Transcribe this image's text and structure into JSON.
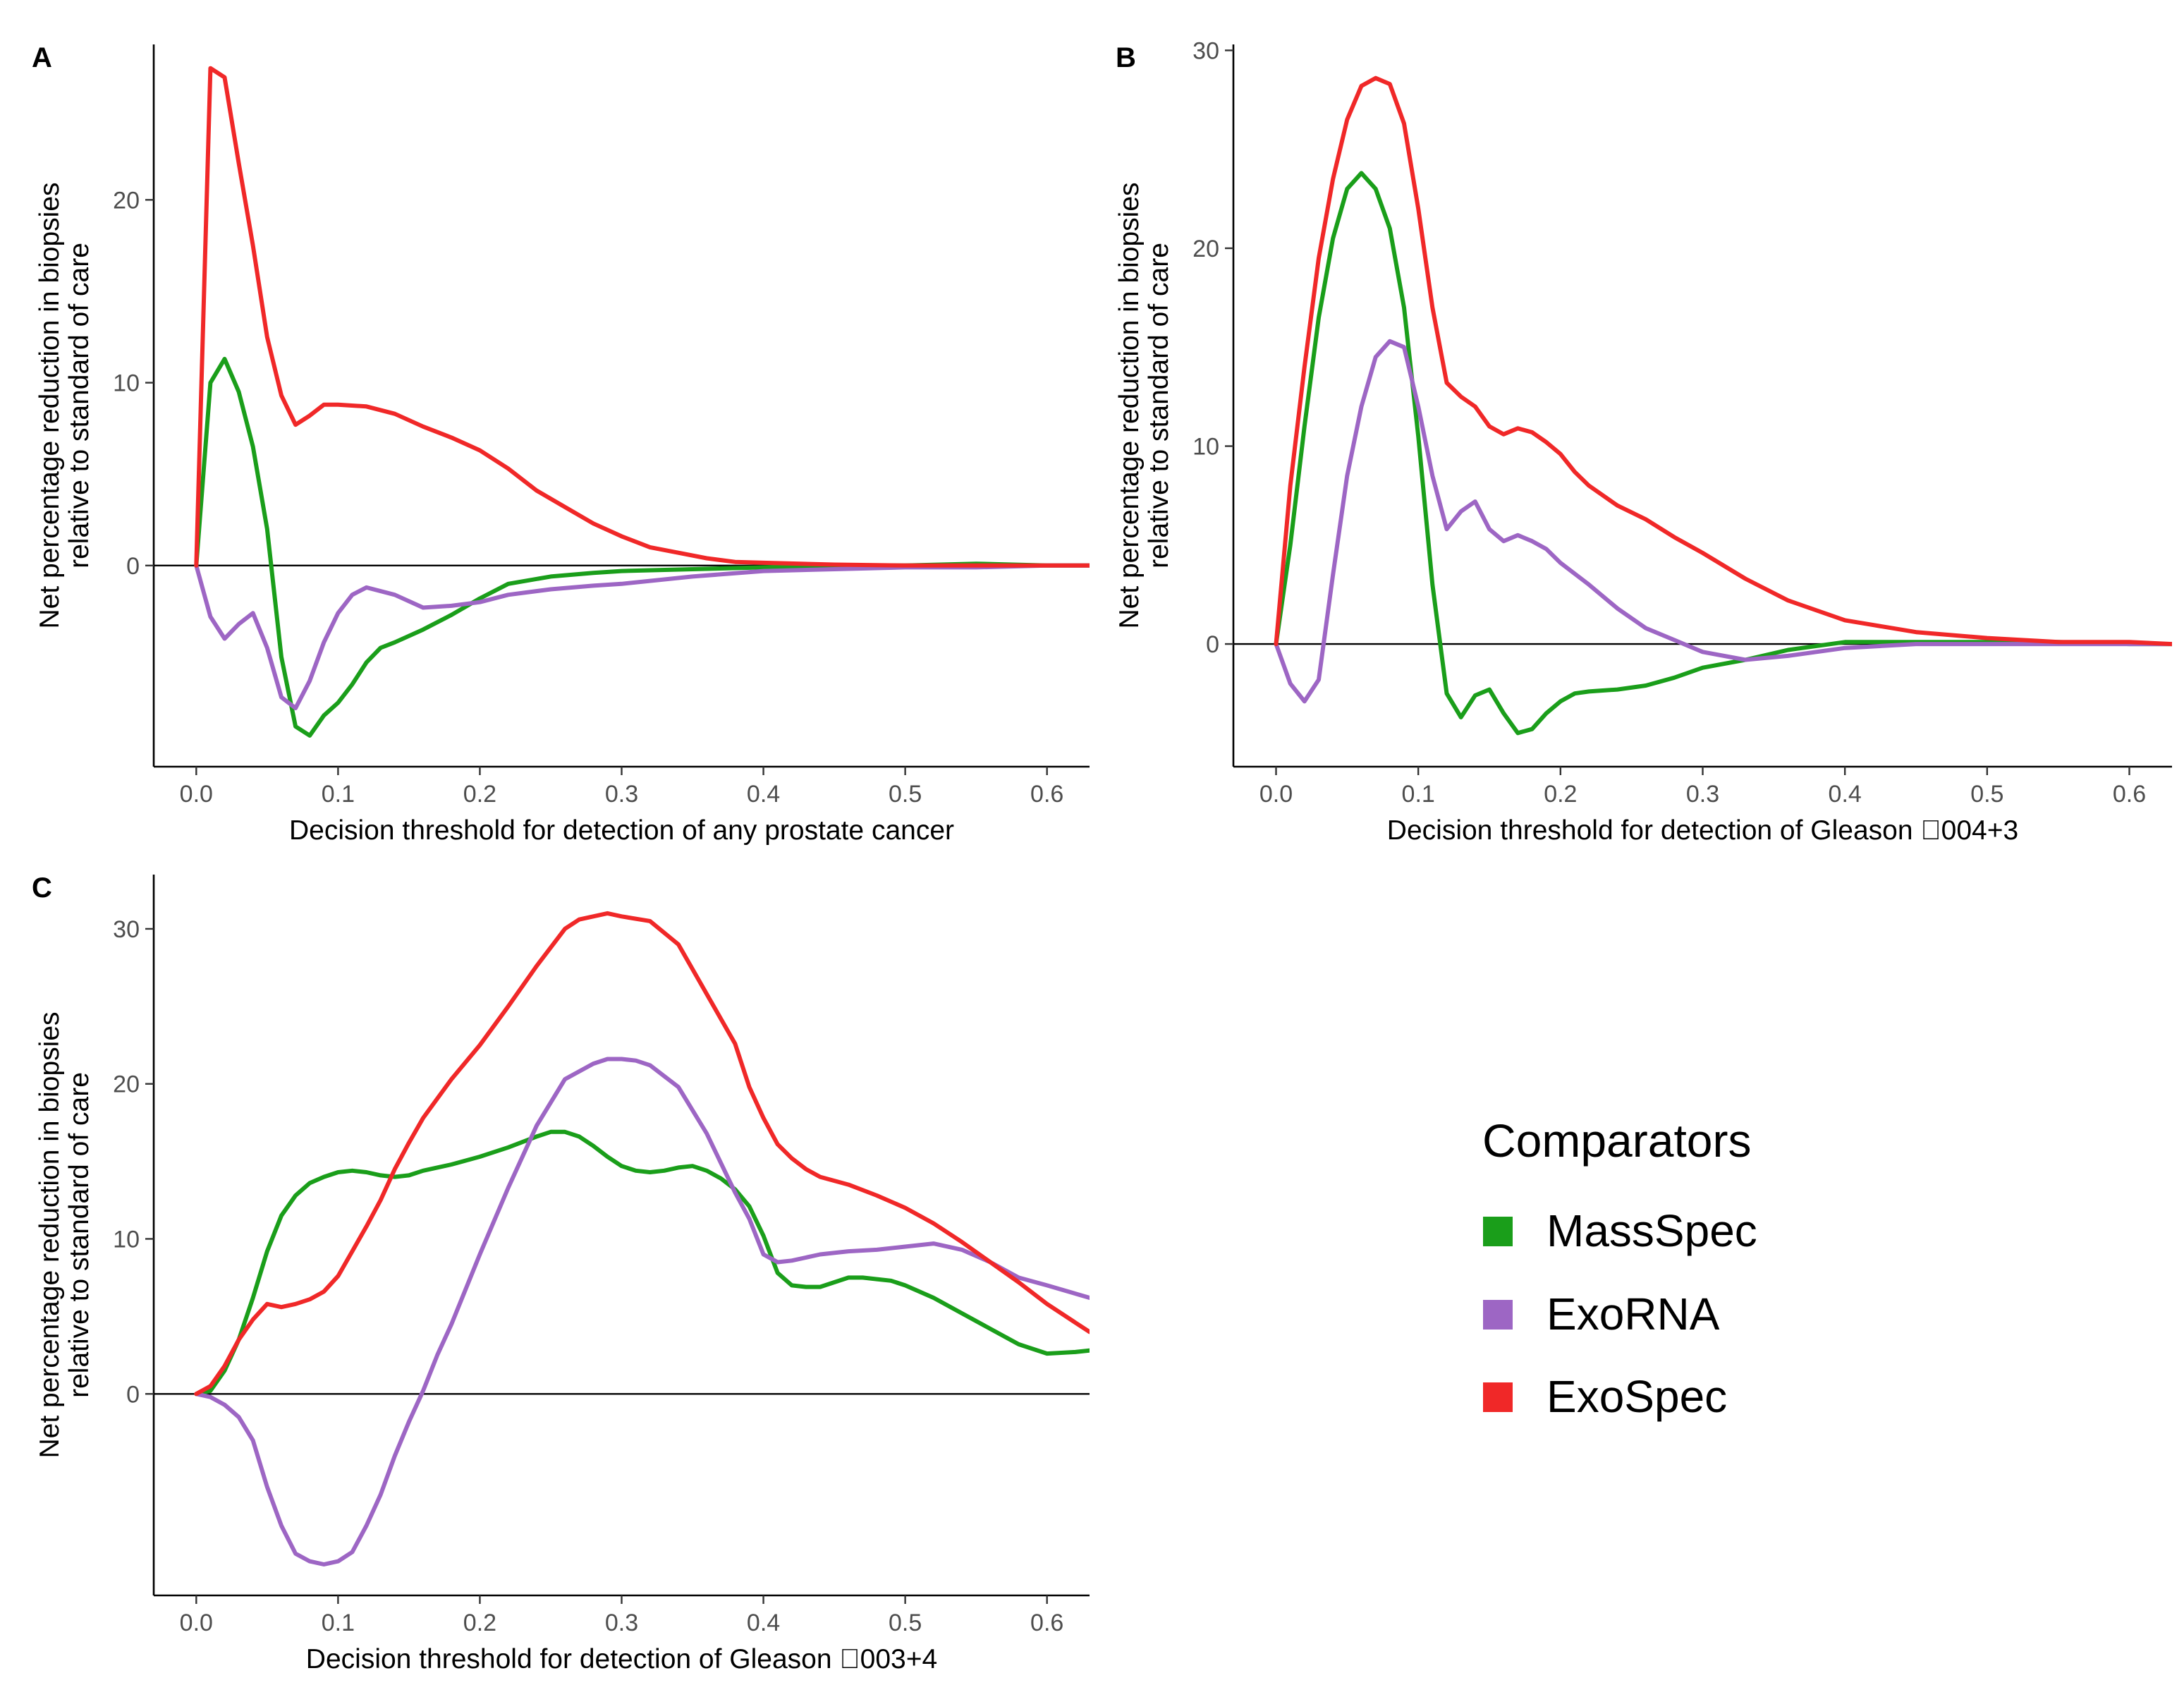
{
  "chart_data": [
    {
      "type": "line",
      "panel": "A",
      "title": "",
      "xlabel": "Decision threshold for detection of any prostate cancer",
      "ylabel_lines": [
        "Net percentage reduction in biopsies",
        "relative to standard of care"
      ],
      "xlim": [
        -0.03,
        0.63
      ],
      "ylim": [
        -11,
        28.5
      ],
      "xticks": [
        0.0,
        0.1,
        0.2,
        0.3,
        0.4,
        0.5,
        0.6
      ],
      "xtick_labels": [
        "0.0",
        "0.1",
        "0.2",
        "0.3",
        "0.4",
        "0.5",
        "0.6"
      ],
      "yticks": [
        0,
        10,
        20
      ],
      "ytick_labels": [
        "0",
        "10",
        "20"
      ],
      "reference_line": 0,
      "series": [
        {
          "name": "MassSpec",
          "color": "#1a9e1a",
          "x": [
            0,
            0.01,
            0.02,
            0.03,
            0.04,
            0.05,
            0.06,
            0.07,
            0.08,
            0.09,
            0.1,
            0.11,
            0.12,
            0.13,
            0.14,
            0.16,
            0.18,
            0.2,
            0.22,
            0.25,
            0.28,
            0.3,
            0.35,
            0.4,
            0.45,
            0.5,
            0.55,
            0.6,
            0.63
          ],
          "y": [
            0,
            10.0,
            11.3,
            9.5,
            6.5,
            2.0,
            -5.0,
            -8.8,
            -9.3,
            -8.2,
            -7.5,
            -6.5,
            -5.3,
            -4.5,
            -4.2,
            -3.5,
            -2.7,
            -1.8,
            -1.0,
            -0.6,
            -0.4,
            -0.3,
            -0.2,
            -0.1,
            0,
            0,
            0.1,
            0,
            0
          ]
        },
        {
          "name": "ExoRNA",
          "color": "#9d66c4",
          "x": [
            0,
            0.01,
            0.02,
            0.03,
            0.04,
            0.05,
            0.06,
            0.07,
            0.08,
            0.09,
            0.1,
            0.11,
            0.12,
            0.14,
            0.16,
            0.18,
            0.2,
            0.22,
            0.25,
            0.28,
            0.3,
            0.35,
            0.4,
            0.45,
            0.5,
            0.55,
            0.6,
            0.63
          ],
          "y": [
            0,
            -2.8,
            -4.0,
            -3.2,
            -2.6,
            -4.5,
            -7.2,
            -7.8,
            -6.3,
            -4.2,
            -2.6,
            -1.6,
            -1.2,
            -1.6,
            -2.3,
            -2.2,
            -2.0,
            -1.6,
            -1.3,
            -1.1,
            -1.0,
            -0.6,
            -0.3,
            -0.2,
            -0.1,
            -0.1,
            0,
            0
          ]
        },
        {
          "name": "ExoSpec",
          "color": "#f02828",
          "x": [
            0,
            0.01,
            0.02,
            0.03,
            0.04,
            0.05,
            0.06,
            0.07,
            0.08,
            0.09,
            0.1,
            0.12,
            0.14,
            0.16,
            0.18,
            0.2,
            0.22,
            0.24,
            0.26,
            0.28,
            0.3,
            0.32,
            0.34,
            0.36,
            0.38,
            0.4,
            0.45,
            0.5,
            0.55,
            0.6,
            0.63
          ],
          "y": [
            0,
            27.2,
            26.7,
            22.0,
            17.5,
            12.5,
            9.3,
            7.7,
            8.2,
            8.8,
            8.8,
            8.7,
            8.3,
            7.6,
            7.0,
            6.3,
            5.3,
            4.1,
            3.2,
            2.3,
            1.6,
            1.0,
            0.7,
            0.4,
            0.2,
            0.15,
            0.05,
            0,
            0,
            0,
            0
          ]
        }
      ]
    },
    {
      "type": "line",
      "panel": "B",
      "title": "",
      "xlabel": "Decision threshold for detection of Gleason \u0000004+3",
      "ylabel_lines": [
        "Net percentage reduction in biopsies",
        "relative to standard of care"
      ],
      "xlim": [
        -0.03,
        0.63
      ],
      "ylim": [
        -6.2,
        30.3
      ],
      "xticks": [
        0.0,
        0.1,
        0.2,
        0.3,
        0.4,
        0.5,
        0.6
      ],
      "xtick_labels": [
        "0.0",
        "0.1",
        "0.2",
        "0.3",
        "0.4",
        "0.5",
        "0.6"
      ],
      "yticks": [
        0,
        10,
        20,
        30
      ],
      "ytick_labels": [
        "0",
        "10",
        "20",
        "30"
      ],
      "reference_line": 0,
      "series": [
        {
          "name": "MassSpec",
          "color": "#1a9e1a",
          "x": [
            0,
            0.01,
            0.02,
            0.03,
            0.04,
            0.05,
            0.06,
            0.07,
            0.08,
            0.09,
            0.1,
            0.11,
            0.12,
            0.13,
            0.14,
            0.15,
            0.16,
            0.17,
            0.18,
            0.19,
            0.2,
            0.21,
            0.22,
            0.24,
            0.26,
            0.28,
            0.3,
            0.33,
            0.36,
            0.4,
            0.45,
            0.5,
            0.55,
            0.6,
            0.63
          ],
          "y": [
            0,
            5.0,
            11.0,
            16.5,
            20.5,
            23.0,
            23.8,
            23.0,
            21.0,
            17.0,
            10.5,
            3.0,
            -2.5,
            -3.7,
            -2.6,
            -2.3,
            -3.5,
            -4.5,
            -4.3,
            -3.5,
            -2.9,
            -2.5,
            -2.4,
            -2.3,
            -2.1,
            -1.7,
            -1.2,
            -0.8,
            -0.3,
            0.1,
            0.1,
            0.1,
            0.1,
            0,
            0
          ]
        },
        {
          "name": "ExoRNA",
          "color": "#9d66c4",
          "x": [
            0,
            0.01,
            0.02,
            0.03,
            0.04,
            0.05,
            0.06,
            0.07,
            0.08,
            0.09,
            0.1,
            0.11,
            0.12,
            0.13,
            0.14,
            0.15,
            0.16,
            0.17,
            0.18,
            0.19,
            0.2,
            0.22,
            0.24,
            0.26,
            0.28,
            0.3,
            0.33,
            0.36,
            0.4,
            0.45,
            0.5,
            0.55,
            0.6,
            0.63
          ],
          "y": [
            0,
            -2.0,
            -2.9,
            -1.8,
            3.5,
            8.5,
            12.0,
            14.5,
            15.3,
            15.0,
            12.0,
            8.5,
            5.8,
            6.7,
            7.2,
            5.8,
            5.2,
            5.5,
            5.2,
            4.8,
            4.1,
            3.0,
            1.8,
            0.8,
            0.2,
            -0.4,
            -0.8,
            -0.6,
            -0.2,
            0,
            0,
            0,
            0,
            0
          ]
        },
        {
          "name": "ExoSpec",
          "color": "#f02828",
          "x": [
            0,
            0.01,
            0.02,
            0.03,
            0.04,
            0.05,
            0.06,
            0.07,
            0.08,
            0.09,
            0.1,
            0.11,
            0.12,
            0.13,
            0.14,
            0.15,
            0.16,
            0.17,
            0.18,
            0.19,
            0.2,
            0.21,
            0.22,
            0.24,
            0.26,
            0.28,
            0.3,
            0.33,
            0.36,
            0.4,
            0.45,
            0.5,
            0.55,
            0.6,
            0.63
          ],
          "y": [
            0,
            8.0,
            14.0,
            19.5,
            23.5,
            26.5,
            28.2,
            28.6,
            28.3,
            26.3,
            22.0,
            17.0,
            13.2,
            12.5,
            12.0,
            11.0,
            10.6,
            10.9,
            10.7,
            10.2,
            9.6,
            8.7,
            8.0,
            7.0,
            6.3,
            5.4,
            4.6,
            3.3,
            2.2,
            1.2,
            0.6,
            0.3,
            0.1,
            0.1,
            0
          ]
        }
      ]
    },
    {
      "type": "line",
      "panel": "C",
      "title": "",
      "xlabel": "Decision threshold for detection of Gleason \u0000003+4",
      "ylabel_lines": [
        "Net percentage reduction in biopsies",
        "relative to standard of care"
      ],
      "xlim": [
        -0.03,
        0.63
      ],
      "ylim": [
        -13,
        33.5
      ],
      "xticks": [
        0.0,
        0.1,
        0.2,
        0.3,
        0.4,
        0.5,
        0.6
      ],
      "xtick_labels": [
        "0.0",
        "0.1",
        "0.2",
        "0.3",
        "0.4",
        "0.5",
        "0.6"
      ],
      "yticks": [
        0,
        10,
        20,
        30
      ],
      "ytick_labels": [
        "0",
        "10",
        "20",
        "30"
      ],
      "reference_line": 0,
      "series": [
        {
          "name": "MassSpec",
          "color": "#1a9e1a",
          "x": [
            0,
            0.01,
            0.02,
            0.03,
            0.04,
            0.05,
            0.06,
            0.07,
            0.08,
            0.09,
            0.1,
            0.11,
            0.12,
            0.13,
            0.14,
            0.15,
            0.16,
            0.18,
            0.2,
            0.22,
            0.24,
            0.25,
            0.26,
            0.27,
            0.28,
            0.29,
            0.3,
            0.31,
            0.32,
            0.33,
            0.34,
            0.35,
            0.36,
            0.37,
            0.38,
            0.39,
            0.4,
            0.41,
            0.42,
            0.43,
            0.44,
            0.45,
            0.46,
            0.47,
            0.48,
            0.49,
            0.5,
            0.52,
            0.54,
            0.56,
            0.58,
            0.6,
            0.62,
            0.63
          ],
          "y": [
            0,
            0.2,
            1.5,
            3.5,
            6.2,
            9.2,
            11.5,
            12.8,
            13.6,
            14.0,
            14.3,
            14.4,
            14.3,
            14.1,
            14.0,
            14.1,
            14.4,
            14.8,
            15.3,
            15.9,
            16.6,
            16.9,
            16.9,
            16.6,
            16.0,
            15.3,
            14.7,
            14.4,
            14.3,
            14.4,
            14.6,
            14.7,
            14.4,
            13.9,
            13.2,
            12.1,
            10.2,
            7.8,
            7.0,
            6.9,
            6.9,
            7.2,
            7.5,
            7.5,
            7.4,
            7.3,
            7.0,
            6.2,
            5.2,
            4.2,
            3.2,
            2.6,
            2.7,
            2.8
          ]
        },
        {
          "name": "ExoRNA",
          "color": "#9d66c4",
          "x": [
            0,
            0.01,
            0.02,
            0.03,
            0.04,
            0.05,
            0.06,
            0.07,
            0.08,
            0.09,
            0.1,
            0.11,
            0.12,
            0.13,
            0.14,
            0.15,
            0.16,
            0.17,
            0.18,
            0.2,
            0.22,
            0.24,
            0.26,
            0.28,
            0.29,
            0.3,
            0.31,
            0.32,
            0.34,
            0.36,
            0.38,
            0.39,
            0.4,
            0.41,
            0.42,
            0.44,
            0.46,
            0.48,
            0.5,
            0.52,
            0.54,
            0.56,
            0.58,
            0.6,
            0.63
          ],
          "y": [
            0,
            -0.2,
            -0.7,
            -1.5,
            -3.0,
            -6.0,
            -8.5,
            -10.3,
            -10.8,
            -11.0,
            -10.8,
            -10.2,
            -8.5,
            -6.5,
            -4.0,
            -1.8,
            0.2,
            2.5,
            4.5,
            9.0,
            13.3,
            17.3,
            20.3,
            21.3,
            21.6,
            21.6,
            21.5,
            21.2,
            19.8,
            16.8,
            13.0,
            11.3,
            9.0,
            8.5,
            8.6,
            9.0,
            9.2,
            9.3,
            9.5,
            9.7,
            9.3,
            8.5,
            7.5,
            7.0,
            6.2
          ]
        },
        {
          "name": "ExoSpec",
          "color": "#f02828",
          "x": [
            0,
            0.01,
            0.02,
            0.03,
            0.04,
            0.05,
            0.06,
            0.07,
            0.08,
            0.09,
            0.1,
            0.11,
            0.12,
            0.13,
            0.14,
            0.15,
            0.16,
            0.18,
            0.2,
            0.22,
            0.24,
            0.26,
            0.27,
            0.28,
            0.29,
            0.3,
            0.32,
            0.34,
            0.36,
            0.38,
            0.39,
            0.4,
            0.41,
            0.42,
            0.43,
            0.44,
            0.46,
            0.48,
            0.5,
            0.52,
            0.54,
            0.56,
            0.58,
            0.6,
            0.62,
            0.63
          ],
          "y": [
            0,
            0.5,
            1.8,
            3.5,
            4.8,
            5.8,
            5.6,
            5.8,
            6.1,
            6.6,
            7.6,
            9.2,
            10.8,
            12.5,
            14.5,
            16.2,
            17.8,
            20.3,
            22.5,
            25.0,
            27.6,
            30.0,
            30.6,
            30.8,
            31.0,
            30.8,
            30.5,
            29.0,
            25.8,
            22.6,
            19.8,
            17.8,
            16.1,
            15.2,
            14.5,
            14.0,
            13.5,
            12.8,
            12.0,
            11.0,
            9.8,
            8.5,
            7.2,
            5.8,
            4.6,
            4.0
          ]
        }
      ]
    }
  ],
  "panels": {
    "a": "A",
    "b": "B",
    "c": "C"
  },
  "legend": {
    "title": "Comparators",
    "items": [
      {
        "label": "MassSpec",
        "color": "#1a9e1a"
      },
      {
        "label": "ExoRNA",
        "color": "#9d66c4"
      },
      {
        "label": "ExoSpec",
        "color": "#f02828"
      }
    ]
  }
}
